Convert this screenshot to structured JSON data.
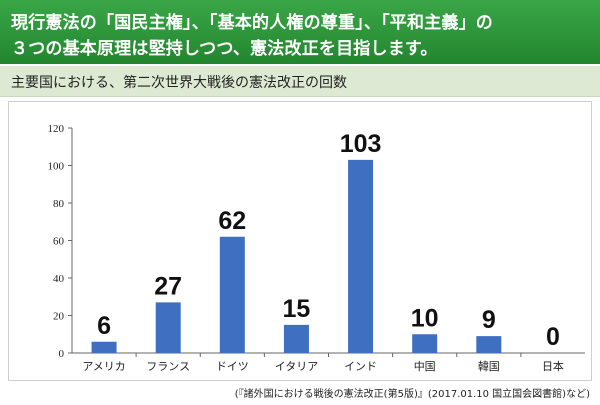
{
  "header": {
    "line1": "現行憲法の「国民主権」、「基本的人権の尊重」、「平和主義」の",
    "line2": "３つの基本原理は堅持しつつ、憲法改正を目指します。"
  },
  "subtitle": "主要国における、第二次世界大戦後の憲法改正の回数",
  "source": "(『諸外国における戦後の憲法改正(第5版)』(2017.01.10 国立国会図書館)など)",
  "colors": {
    "bar": "#3e6fc0",
    "header_bg": "#2e9a3c",
    "subheader_bg": "#dde9d3"
  },
  "chart_data": {
    "type": "bar",
    "categories": [
      "アメリカ",
      "フランス",
      "ドイツ",
      "イタリア",
      "インド",
      "中国",
      "韓国",
      "日本"
    ],
    "values": [
      6,
      27,
      62,
      15,
      103,
      10,
      9,
      0
    ],
    "value_labels": [
      "6",
      "27",
      "62",
      "15",
      "103",
      "10",
      "9",
      "0"
    ],
    "yticks": [
      "0",
      "20",
      "40",
      "60",
      "80",
      "100",
      "120"
    ],
    "ylim": [
      0,
      120
    ],
    "grid": false,
    "legend": "none"
  }
}
